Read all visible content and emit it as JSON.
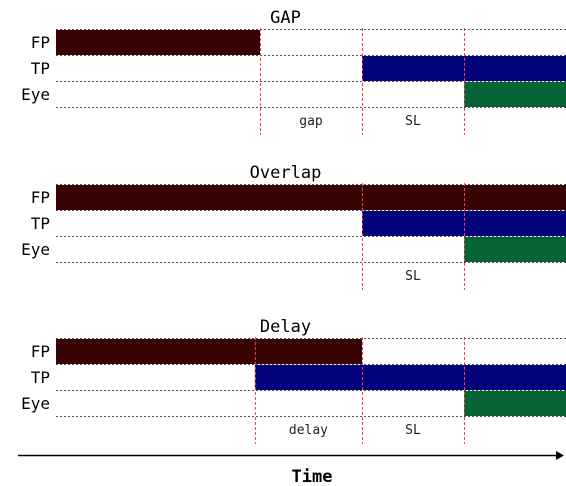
{
  "colors": {
    "fp": "#3a0303",
    "tp": "#02027a",
    "eye": "#056335",
    "guide": "#e8464a",
    "dash": "#555555"
  },
  "axis_label": "Time",
  "panels": [
    {
      "title": "GAP",
      "rows": [
        {
          "label": "FP",
          "bars": [
            [
              0,
              0.4
            ]
          ]
        },
        {
          "label": "TP",
          "bars": [
            [
              0.6,
              1.0
            ]
          ]
        },
        {
          "label": "Eye",
          "bars": [
            [
              0.8,
              1.0
            ]
          ]
        }
      ],
      "markers": [
        0.4,
        0.6,
        0.8
      ],
      "intervals": [
        {
          "label": "gap",
          "from": 0.4,
          "to": 0.6
        },
        {
          "label": "SL",
          "from": 0.6,
          "to": 0.8
        }
      ]
    },
    {
      "title": "Overlap",
      "rows": [
        {
          "label": "FP",
          "bars": [
            [
              0,
              1.0
            ]
          ]
        },
        {
          "label": "TP",
          "bars": [
            [
              0.6,
              1.0
            ]
          ]
        },
        {
          "label": "Eye",
          "bars": [
            [
              0.8,
              1.0
            ]
          ]
        }
      ],
      "markers": [
        0.6,
        0.8
      ],
      "intervals": [
        {
          "label": "SL",
          "from": 0.6,
          "to": 0.8
        }
      ]
    },
    {
      "title": "Delay",
      "rows": [
        {
          "label": "FP",
          "bars": [
            [
              0,
              0.6
            ]
          ]
        },
        {
          "label": "TP",
          "bars": [
            [
              0.39,
              1.0
            ]
          ]
        },
        {
          "label": "Eye",
          "bars": [
            [
              0.8,
              1.0
            ]
          ]
        }
      ],
      "markers": [
        0.39,
        0.6,
        0.8
      ],
      "intervals": [
        {
          "label": "delay",
          "from": 0.39,
          "to": 0.6
        },
        {
          "label": "SL",
          "from": 0.6,
          "to": 0.8
        }
      ]
    }
  ]
}
